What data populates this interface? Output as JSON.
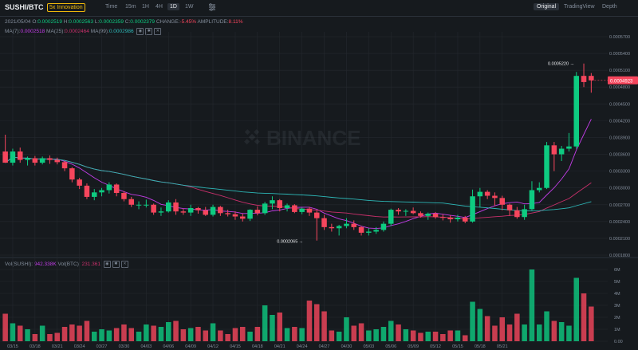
{
  "header": {
    "pair": "SUSHI/BTC",
    "badge": "5x Innovation",
    "timeframes": [
      "Time",
      "15m",
      "1H",
      "4H",
      "1D",
      "1W"
    ],
    "active_timeframe": "1D",
    "views": [
      "Original",
      "TradingView",
      "Depth"
    ],
    "active_view": "Original"
  },
  "ohlc": {
    "date": "2021/05/04",
    "open_label": "O:",
    "open": "0.0002519",
    "high_label": "H:",
    "high": "0.0002563",
    "low_label": "L:",
    "low": "0.0002359",
    "close_label": "C:",
    "close": "0.0002379",
    "change_label": "CHANGE:",
    "change": "-5.45%",
    "amplitude_label": "AMPLITUDE:",
    "amplitude": "8.11%"
  },
  "ma": {
    "ma7_label": "MA(7):",
    "ma7": "0.0002518",
    "ma25_label": "MA(25):",
    "ma25": "0.0002464",
    "ma99_label": "MA(99):",
    "ma99": "0.0002986"
  },
  "volume_info": {
    "sushi_label": "Vol(SUSHI):",
    "sushi": "942.338K",
    "btc_label": "Vol(BTC):",
    "btc": "231.361"
  },
  "watermark": "BINANCE",
  "markers": {
    "high": "0.0005220",
    "low": "0.0002065",
    "last_price": "0.0004923"
  },
  "colors": {
    "up": "#0ecb81",
    "down": "#f6465d",
    "ma7": "#c33de8",
    "ma25": "#c9306b",
    "ma99": "#2db7b7",
    "background": "#161a1e",
    "grid": "#24282e",
    "text": "#848e9c"
  },
  "chart_data": {
    "type": "candlestick",
    "price_axis": {
      "min": 0.00018,
      "max": 0.00057,
      "ticks": [
        "0.0005700",
        "0.0005400",
        "0.0005100",
        "0.0004800",
        "0.0004500",
        "0.0004200",
        "0.0003900",
        "0.0003600",
        "0.0003300",
        "0.0003000",
        "0.0002700",
        "0.0002400",
        "0.0002100",
        "0.0001800"
      ]
    },
    "volume_axis": {
      "max": 6.0,
      "ticks": [
        "6M",
        "5M",
        "4M",
        "3M",
        "2M",
        "1M",
        "0.00"
      ]
    },
    "date_labels": [
      "03/15",
      "03/18",
      "03/21",
      "03/24",
      "03/27",
      "03/30",
      "04/03",
      "04/06",
      "04/09",
      "04/12",
      "04/15",
      "04/18",
      "04/21",
      "04/24",
      "04/27",
      "04/30",
      "05/03",
      "05/06",
      "05/09",
      "05/12",
      "05/15",
      "05/18",
      "05/21"
    ],
    "candles": [
      [
        0.000365,
        0.000395,
        0.000345,
        0.000345,
        2.3
      ],
      [
        0.000345,
        0.00037,
        0.00034,
        0.000365,
        1.5
      ],
      [
        0.000365,
        0.000372,
        0.000345,
        0.00035,
        1.3
      ],
      [
        0.00035,
        0.000356,
        0.00034,
        0.000353,
        1.0
      ],
      [
        0.000353,
        0.000357,
        0.00034,
        0.000345,
        0.6
      ],
      [
        0.000345,
        0.000356,
        0.000342,
        0.000353,
        1.3
      ],
      [
        0.000353,
        0.000358,
        0.000343,
        0.00035,
        0.6
      ],
      [
        0.00035,
        0.000354,
        0.000342,
        0.000346,
        0.7
      ],
      [
        0.000346,
        0.000348,
        0.00033,
        0.000335,
        1.2
      ],
      [
        0.000335,
        0.000337,
        0.00031,
        0.000315,
        1.4
      ],
      [
        0.000315,
        0.000318,
        0.000298,
        0.000304,
        1.3
      ],
      [
        0.000304,
        0.000308,
        0.00028,
        0.000284,
        1.7
      ],
      [
        0.000284,
        0.000298,
        0.000278,
        0.000292,
        0.8
      ],
      [
        0.000292,
        0.0003,
        0.000285,
        0.000296,
        1.0
      ],
      [
        0.000296,
        0.00031,
        0.00029,
        0.000306,
        0.9
      ],
      [
        0.000306,
        0.000308,
        0.000285,
        0.000291,
        1.1
      ],
      [
        0.000291,
        0.000294,
        0.000276,
        0.00028,
        1.4
      ],
      [
        0.00028,
        0.000284,
        0.000266,
        0.00027,
        1.1
      ],
      [
        0.00027,
        0.000276,
        0.000262,
        0.00027,
        0.8
      ],
      [
        0.00027,
        0.000279,
        0.000265,
        0.00027,
        1.4
      ],
      [
        0.00027,
        0.000272,
        0.000252,
        0.000256,
        1.3
      ],
      [
        0.000256,
        0.000265,
        0.00025,
        0.000258,
        1.2
      ],
      [
        0.000258,
        0.000278,
        0.000256,
        0.000274,
        1.6
      ],
      [
        0.000274,
        0.00028,
        0.000252,
        0.000258,
        1.7
      ],
      [
        0.000258,
        0.000263,
        0.000252,
        0.000256,
        1.0
      ],
      [
        0.000256,
        0.00027,
        0.00025,
        0.000264,
        1.1
      ],
      [
        0.000264,
        0.000266,
        0.000254,
        0.00026,
        1.2
      ],
      [
        0.00026,
        0.000266,
        0.00025,
        0.000252,
        0.9
      ],
      [
        0.000252,
        0.00027,
        0.000249,
        0.000266,
        1.5
      ],
      [
        0.000266,
        0.000268,
        0.00025,
        0.000255,
        0.9
      ],
      [
        0.000255,
        0.000261,
        0.000249,
        0.000253,
        0.6
      ],
      [
        0.000253,
        0.000258,
        0.000243,
        0.000249,
        1.1
      ],
      [
        0.000249,
        0.000254,
        0.00024,
        0.000245,
        1.2
      ],
      [
        0.000245,
        0.000262,
        0.000241,
        0.000261,
        0.8
      ],
      [
        0.000261,
        0.000267,
        0.000251,
        0.000255,
        1.2
      ],
      [
        0.000255,
        0.000275,
        0.000252,
        0.000272,
        3.0
      ],
      [
        0.000272,
        0.000285,
        0.000262,
        0.000278,
        2.2
      ],
      [
        0.000278,
        0.00028,
        0.000258,
        0.000264,
        2.4
      ],
      [
        0.000264,
        0.000272,
        0.000258,
        0.000269,
        1.1
      ],
      [
        0.000269,
        0.000271,
        0.000255,
        0.000257,
        1.2
      ],
      [
        0.000257,
        0.000265,
        0.000253,
        0.000263,
        1.1
      ],
      [
        0.000263,
        0.000266,
        0.00025,
        0.000256,
        3.4
      ],
      [
        0.000256,
        0.00026,
        0.000206,
        0.000246,
        3.1
      ],
      [
        0.000246,
        0.000252,
        0.000225,
        0.00023,
        2.5
      ],
      [
        0.00023,
        0.000236,
        0.000222,
        0.000228,
        0.9
      ],
      [
        0.000228,
        0.000234,
        0.000215,
        0.000232,
        0.8
      ],
      [
        0.000232,
        0.000246,
        0.000228,
        0.000236,
        2.0
      ],
      [
        0.000236,
        0.000242,
        0.000225,
        0.00023,
        1.3
      ],
      [
        0.00023,
        0.000232,
        0.000215,
        0.00022,
        1.5
      ],
      [
        0.00022,
        0.000228,
        0.000215,
        0.000222,
        0.9
      ],
      [
        0.000222,
        0.00023,
        0.000218,
        0.000225,
        1.0
      ],
      [
        0.000225,
        0.00024,
        0.000222,
        0.000236,
        1.2
      ],
      [
        0.000236,
        0.000263,
        0.000232,
        0.000261,
        1.7
      ],
      [
        0.000261,
        0.000264,
        0.000252,
        0.000258,
        1.4
      ],
      [
        0.000258,
        0.000262,
        0.00025,
        0.000259,
        1.0
      ],
      [
        0.000259,
        0.000265,
        0.000253,
        0.000255,
        0.9
      ],
      [
        0.000255,
        0.000258,
        0.000247,
        0.00025,
        0.7
      ],
      [
        0.00025,
        0.000256,
        0.000243,
        0.000254,
        0.8
      ],
      [
        0.000254,
        0.000257,
        0.000245,
        0.000248,
        0.8
      ],
      [
        0.000248,
        0.000253,
        0.000242,
        0.000247,
        0.6
      ],
      [
        0.000247,
        0.000251,
        0.000238,
        0.000244,
        0.9
      ],
      [
        0.000244,
        0.000252,
        0.00024,
        0.000247,
        0.9
      ],
      [
        0.000247,
        0.00025,
        0.000237,
        0.00024,
        0.5
      ],
      [
        0.00024,
        0.000297,
        0.000238,
        0.000285,
        3.3
      ],
      [
        0.000285,
        0.0003,
        0.000266,
        0.000293,
        2.7
      ],
      [
        0.000293,
        0.000296,
        0.00028,
        0.000286,
        2.1
      ],
      [
        0.000286,
        0.000292,
        0.000268,
        0.000282,
        1.3
      ],
      [
        0.000282,
        0.000286,
        0.00026,
        0.00027,
        2.0
      ],
      [
        0.00027,
        0.000272,
        0.00025,
        0.00026,
        1.4
      ],
      [
        0.00026,
        0.000266,
        0.000245,
        0.000248,
        2.3
      ],
      [
        0.000248,
        0.00027,
        0.000243,
        0.000262,
        1.4
      ],
      [
        0.000262,
        0.000312,
        0.00026,
        0.000296,
        6.0
      ],
      [
        0.000296,
        0.00031,
        0.000292,
        0.0003,
        1.4
      ],
      [
        0.0003,
        0.000382,
        0.000298,
        0.000376,
        2.5
      ],
      [
        0.000376,
        0.000382,
        0.00033,
        0.00036,
        1.7
      ],
      [
        0.00036,
        0.000375,
        0.000348,
        0.00037,
        1.6
      ],
      [
        0.00037,
        0.000398,
        0.000365,
        0.000374,
        1.3
      ],
      [
        0.000374,
        0.000507,
        0.00037,
        0.0005,
        5.3
      ],
      [
        0.0005,
        0.000522,
        0.00048,
        0.000489,
        4.0
      ],
      [
        0.0005,
        0.000505,
        0.00047,
        0.000492,
        2.9
      ]
    ]
  }
}
